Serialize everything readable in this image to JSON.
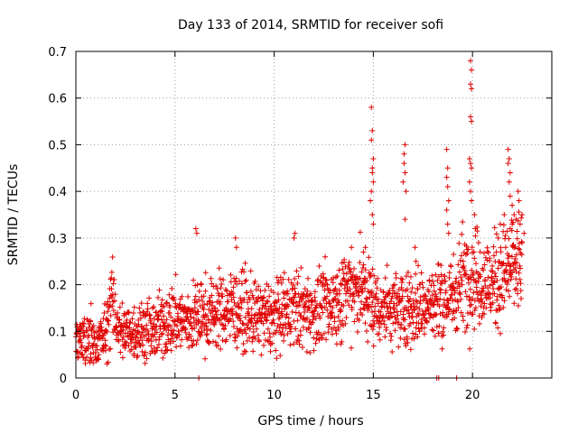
{
  "chart_data": {
    "type": "scatter",
    "title": "Day 133 of 2014, SRMTID for receiver sofi",
    "xlabel": "GPS time / hours",
    "ylabel": "SRMTID / TECUs",
    "xlim": [
      0,
      24
    ],
    "ylim": [
      0,
      0.7
    ],
    "x_ticks": [
      0,
      5,
      10,
      15,
      20
    ],
    "y_ticks": [
      0,
      0.1,
      0.2,
      0.3,
      0.4,
      0.5,
      0.6,
      0.7
    ],
    "x_tick_labels": [
      "0",
      "5",
      "10",
      "15",
      "20"
    ],
    "y_tick_labels": [
      "0",
      "0.1",
      "0.2",
      "0.3",
      "0.4",
      "0.5",
      "0.6",
      "0.7"
    ],
    "grid": true,
    "marker": "+",
    "color": "#e00000",
    "series": [
      {
        "name": "SRMTID",
        "trend": [
          [
            0,
            0.07
          ],
          [
            1,
            0.08
          ],
          [
            1.5,
            0.09
          ],
          [
            1.8,
            0.17
          ],
          [
            2.2,
            0.1
          ],
          [
            3,
            0.1
          ],
          [
            4,
            0.1
          ],
          [
            5,
            0.13
          ],
          [
            5.5,
            0.12
          ],
          [
            6,
            0.13
          ],
          [
            7,
            0.14
          ],
          [
            8,
            0.15
          ],
          [
            9,
            0.13
          ],
          [
            10,
            0.13
          ],
          [
            11,
            0.15
          ],
          [
            12,
            0.14
          ],
          [
            13,
            0.16
          ],
          [
            14,
            0.2
          ],
          [
            14.8,
            0.17
          ],
          [
            15.2,
            0.15
          ],
          [
            16,
            0.15
          ],
          [
            17,
            0.15
          ],
          [
            18,
            0.16
          ],
          [
            19,
            0.17
          ],
          [
            19.5,
            0.22
          ],
          [
            20,
            0.22
          ],
          [
            21,
            0.2
          ],
          [
            22,
            0.24
          ],
          [
            22.5,
            0.25
          ]
        ],
        "spikes": [
          [
            6.05,
            0.32
          ],
          [
            6.1,
            0.31
          ],
          [
            8.05,
            0.3
          ],
          [
            8.1,
            0.28
          ],
          [
            11,
            0.3
          ],
          [
            11.05,
            0.31
          ],
          [
            13.9,
            0.28
          ],
          [
            14.5,
            0.27
          ],
          [
            14.6,
            0.28
          ],
          [
            14.9,
            0.58
          ],
          [
            14.95,
            0.53
          ],
          [
            14.9,
            0.51
          ],
          [
            15.0,
            0.47
          ],
          [
            14.95,
            0.45
          ],
          [
            14.95,
            0.44
          ],
          [
            15.0,
            0.42
          ],
          [
            14.9,
            0.4
          ],
          [
            14.85,
            0.38
          ],
          [
            14.95,
            0.35
          ],
          [
            15.0,
            0.33
          ],
          [
            16.55,
            0.48
          ],
          [
            16.6,
            0.5
          ],
          [
            16.55,
            0.46
          ],
          [
            16.6,
            0.44
          ],
          [
            16.5,
            0.42
          ],
          [
            16.65,
            0.4
          ],
          [
            16.6,
            0.34
          ],
          [
            17.1,
            0.28
          ],
          [
            17.15,
            0.25
          ],
          [
            18.7,
            0.49
          ],
          [
            18.75,
            0.45
          ],
          [
            18.7,
            0.43
          ],
          [
            18.75,
            0.41
          ],
          [
            18.8,
            0.38
          ],
          [
            18.7,
            0.36
          ],
          [
            18.75,
            0.33
          ],
          [
            18.8,
            0.31
          ],
          [
            19.9,
            0.68
          ],
          [
            19.95,
            0.66
          ],
          [
            19.9,
            0.63
          ],
          [
            19.95,
            0.62
          ],
          [
            19.9,
            0.56
          ],
          [
            19.95,
            0.55
          ],
          [
            19.85,
            0.47
          ],
          [
            19.9,
            0.46
          ],
          [
            19.95,
            0.45
          ],
          [
            19.85,
            0.42
          ],
          [
            19.9,
            0.4
          ],
          [
            19.95,
            0.38
          ],
          [
            20.1,
            0.35
          ],
          [
            20.15,
            0.32
          ],
          [
            21.0,
            0.24
          ],
          [
            21.3,
            0.3
          ],
          [
            21.4,
            0.33
          ],
          [
            21.6,
            0.35
          ],
          [
            21.8,
            0.49
          ],
          [
            21.85,
            0.47
          ],
          [
            21.8,
            0.46
          ],
          [
            21.9,
            0.44
          ],
          [
            21.85,
            0.42
          ],
          [
            21.9,
            0.39
          ],
          [
            22.0,
            0.37
          ],
          [
            22.1,
            0.35
          ],
          [
            22.3,
            0.4
          ],
          [
            22.35,
            0.38
          ],
          [
            22.5,
            0.35
          ],
          [
            22.4,
            0.33
          ],
          [
            22.6,
            0.31
          ],
          [
            22.5,
            0.29
          ],
          [
            22.0,
            0.33
          ],
          [
            22.2,
            0.34
          ],
          [
            21.9,
            0.32
          ]
        ],
        "zero_points": [
          [
            6.2,
            0
          ],
          [
            18.2,
            0
          ],
          [
            18.3,
            0
          ],
          [
            19.2,
            0
          ]
        ]
      }
    ]
  }
}
